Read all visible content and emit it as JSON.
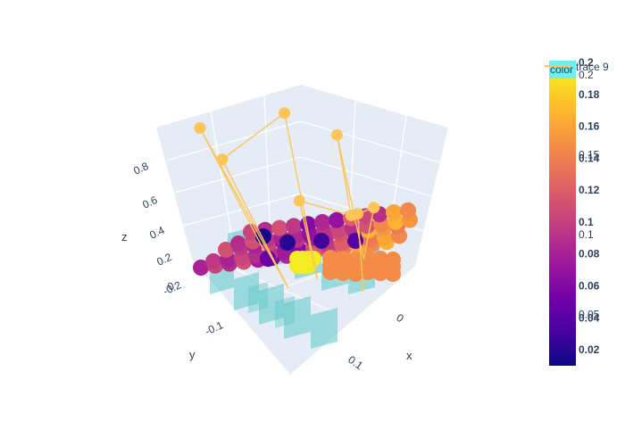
{
  "chart_data": {
    "type": "scatter3d",
    "title": "",
    "axes": {
      "x": {
        "label": "x",
        "ticks": [
          "0",
          "0.1"
        ]
      },
      "y": {
        "label": "y",
        "ticks": [
          "-0.2",
          "-0.1"
        ]
      },
      "z": {
        "label": "z",
        "ticks": [
          "0",
          "0.2",
          "0.4",
          "0.6",
          "0.8"
        ],
        "range": [
          0,
          0.95
        ]
      }
    },
    "colorscale": {
      "name": "plasma",
      "colors": [
        "#0d0887",
        "#46039f",
        "#7201a8",
        "#9c179e",
        "#bd3786",
        "#d8576b",
        "#ed7953",
        "#fb9f3a",
        "#fdca26",
        "#f0f921"
      ],
      "range": [
        0.01,
        0.2
      ],
      "ticks": [
        "0.02",
        "0.04",
        "0.06",
        "0.08",
        "0.1",
        "0.12",
        "0.14",
        "0.16",
        "0.18",
        "0.2"
      ],
      "secondary_ticks": [
        "0.05",
        "0.1",
        "0.15",
        "0.2"
      ],
      "title": "color"
    },
    "legend": {
      "entries": [
        "trace 9"
      ],
      "position": "top-right",
      "trace_color": "#fdc557"
    },
    "line_points": [
      {
        "x": -0.02,
        "y": 0.08,
        "z": 0.02
      },
      {
        "x": -0.1,
        "y": -0.05,
        "z": 0.8
      },
      {
        "x": 0.06,
        "y": -0.16,
        "z": 0.05
      },
      {
        "x": -0.08,
        "y": 0.04,
        "z": 0.55
      },
      {
        "x": 0.03,
        "y": -0.02,
        "z": 0.92
      },
      {
        "x": 0.1,
        "y": -0.12,
        "z": 0.08
      },
      {
        "x": 0.04,
        "y": 0.06,
        "z": 0.35
      },
      {
        "x": 0.14,
        "y": -0.04,
        "z": 0.4
      },
      {
        "x": 0.09,
        "y": 0.12,
        "z": 0.7
      },
      {
        "x": 0.15,
        "y": 0.02,
        "z": 0.1
      },
      {
        "x": 0.18,
        "y": -0.06,
        "z": 0.48
      },
      {
        "x": 0.13,
        "y": 0.08,
        "z": 0.3
      },
      {
        "x": 0.17,
        "y": -0.1,
        "z": 0.03
      }
    ]
  }
}
